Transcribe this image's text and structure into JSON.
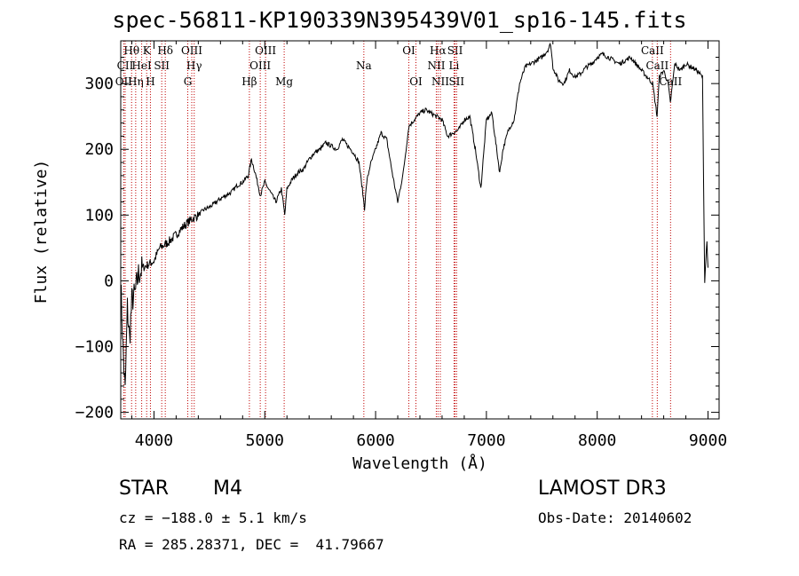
{
  "header": {
    "title": "spec-56811-KP190339N395439V01_sp16-145.fits"
  },
  "info": {
    "object_class": "STAR",
    "subclass": "M4",
    "survey": "LAMOST DR3",
    "cz": "cz = −188.0 ± 5.1 km/s",
    "obs_date": "Obs-Date: 20140602",
    "radec": "RA = 285.28371, DEC =  41.79667"
  },
  "chart_data": {
    "type": "line",
    "title": "spec-56811-KP190339N395439V01_sp16-145.fits",
    "xlabel": "Wavelength (Å)",
    "ylabel": "Flux (relative)",
    "xlim": [
      3700,
      9100
    ],
    "ylim": [
      -210,
      365
    ],
    "x_ticks": [
      4000,
      5000,
      6000,
      7000,
      8000,
      9000
    ],
    "x_tick_labels": [
      "4000",
      "5000",
      "6000",
      "7000",
      "8000",
      "9000"
    ],
    "y_ticks": [
      -200,
      -100,
      0,
      100,
      200,
      300
    ],
    "y_tick_labels": [
      "−200",
      "−100",
      "0",
      "100",
      "200",
      "300"
    ],
    "series": [
      {
        "name": "flux",
        "x": [
          3700,
          3720,
          3740,
          3760,
          3780,
          3800,
          3830,
          3860,
          3900,
          3950,
          4000,
          4050,
          4100,
          4150,
          4200,
          4250,
          4300,
          4350,
          4400,
          4450,
          4500,
          4550,
          4600,
          4650,
          4700,
          4750,
          4800,
          4850,
          4880,
          4920,
          4960,
          5000,
          5050,
          5100,
          5150,
          5180,
          5200,
          5250,
          5300,
          5350,
          5400,
          5450,
          5500,
          5550,
          5600,
          5650,
          5700,
          5750,
          5800,
          5850,
          5880,
          5900,
          5920,
          5950,
          6000,
          6050,
          6100,
          6130,
          6160,
          6200,
          6250,
          6300,
          6350,
          6400,
          6450,
          6500,
          6550,
          6600,
          6650,
          6700,
          6750,
          6800,
          6850,
          6900,
          6950,
          7000,
          7050,
          7100,
          7120,
          7150,
          7200,
          7250,
          7300,
          7350,
          7400,
          7450,
          7500,
          7550,
          7580,
          7600,
          7650,
          7700,
          7750,
          7800,
          7850,
          7900,
          7950,
          8000,
          8050,
          8100,
          8150,
          8200,
          8250,
          8300,
          8350,
          8400,
          8450,
          8500,
          8540,
          8560,
          8600,
          8640,
          8660,
          8700,
          8750,
          8800,
          8850,
          8900,
          8950,
          8970,
          8990,
          9000
        ],
        "y": [
          0,
          -100,
          -170,
          -40,
          -90,
          -30,
          -20,
          10,
          20,
          25,
          30,
          50,
          55,
          62,
          70,
          80,
          88,
          95,
          100,
          108,
          112,
          118,
          125,
          130,
          135,
          145,
          150,
          160,
          185,
          160,
          130,
          150,
          135,
          120,
          140,
          100,
          140,
          155,
          165,
          170,
          185,
          195,
          200,
          210,
          205,
          200,
          215,
          205,
          195,
          180,
          140,
          110,
          150,
          175,
          200,
          225,
          215,
          185,
          155,
          120,
          165,
          235,
          245,
          255,
          260,
          255,
          250,
          245,
          220,
          225,
          230,
          245,
          250,
          200,
          140,
          245,
          255,
          190,
          165,
          200,
          230,
          245,
          300,
          325,
          330,
          335,
          340,
          350,
          360,
          325,
          305,
          300,
          320,
          310,
          315,
          325,
          330,
          340,
          345,
          340,
          335,
          330,
          335,
          340,
          330,
          320,
          310,
          300,
          250,
          310,
          320,
          300,
          270,
          330,
          320,
          330,
          325,
          320,
          310,
          0,
          60,
          20
        ]
      }
    ],
    "lines": [
      {
        "name": "Hθ",
        "wl": 3798,
        "row": 1
      },
      {
        "name": "OII",
        "wl": 3727,
        "row": 3
      },
      {
        "name": "CII",
        "wl": 3740,
        "row": 2
      },
      {
        "name": "Hη",
        "wl": 3835,
        "row": 3
      },
      {
        "name": "HeI",
        "wl": 3889,
        "row": 2
      },
      {
        "name": "K",
        "wl": 3934,
        "row": 1
      },
      {
        "name": "H",
        "wl": 3968,
        "row": 3
      },
      {
        "name": "SII",
        "wl": 4070,
        "row": 2
      },
      {
        "name": "Hδ",
        "wl": 4102,
        "row": 1
      },
      {
        "name": "OIII",
        "wl": 4341,
        "row": 1
      },
      {
        "name": "Hγ",
        "wl": 4363,
        "row": 2
      },
      {
        "name": "G",
        "wl": 4305,
        "row": 3
      },
      {
        "name": "Hβ",
        "wl": 4861,
        "row": 3
      },
      {
        "name": "OIII",
        "wl": 5007,
        "row": 1
      },
      {
        "name": "OIII",
        "wl": 4959,
        "row": 2
      },
      {
        "name": "Mg",
        "wl": 5175,
        "row": 3
      },
      {
        "name": "Na",
        "wl": 5894,
        "row": 2
      },
      {
        "name": "OI",
        "wl": 6300,
        "row": 1
      },
      {
        "name": "OI",
        "wl": 6364,
        "row": 3
      },
      {
        "name": "Hα",
        "wl": 6563,
        "row": 1
      },
      {
        "name": "NII",
        "wl": 6548,
        "row": 2
      },
      {
        "name": "NII",
        "wl": 6584,
        "row": 3
      },
      {
        "name": "SII",
        "wl": 6717,
        "row": 1
      },
      {
        "name": "Li",
        "wl": 6708,
        "row": 2
      },
      {
        "name": "SII",
        "wl": 6731,
        "row": 3
      },
      {
        "name": "CaII",
        "wl": 8498,
        "row": 1
      },
      {
        "name": "CaII",
        "wl": 8542,
        "row": 2
      },
      {
        "name": "CaII",
        "wl": 8662,
        "row": 3
      }
    ],
    "grid": false
  }
}
